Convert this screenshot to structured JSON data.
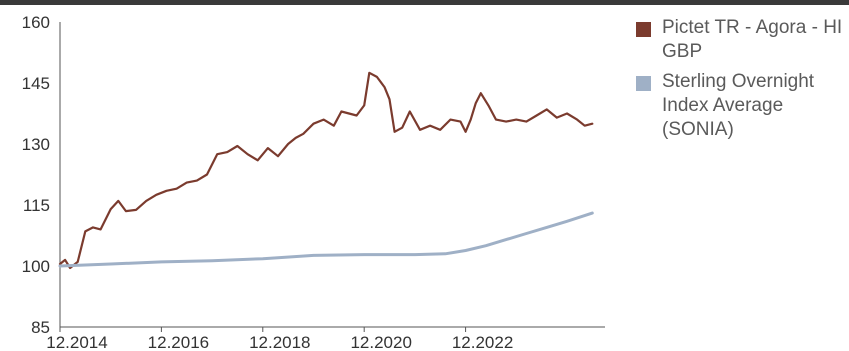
{
  "chart_data": {
    "type": "line",
    "title": "",
    "xlabel": "",
    "ylabel": "",
    "ylim": [
      85,
      160
    ],
    "yticks": [
      "85",
      "100",
      "115",
      "130",
      "145",
      "160"
    ],
    "xlim": [
      2014.0,
      2024.75
    ],
    "xticks": [
      {
        "label": "12.2014",
        "value": 2014.0
      },
      {
        "label": "12.2016",
        "value": 2016.0
      },
      {
        "label": "12.2018",
        "value": 2018.0
      },
      {
        "label": "12.2020",
        "value": 2020.0
      },
      {
        "label": "12.2022",
        "value": 2022.0
      }
    ],
    "grid": false,
    "legend_position": "right",
    "series": [
      {
        "name": "Pictet TR - Agora - HI GBP",
        "color": "#7b3b2e",
        "x": [
          2014.0,
          2014.1,
          2014.2,
          2014.35,
          2014.5,
          2014.65,
          2014.8,
          2015.0,
          2015.15,
          2015.3,
          2015.5,
          2015.7,
          2015.9,
          2016.1,
          2016.3,
          2016.5,
          2016.7,
          2016.9,
          2017.1,
          2017.3,
          2017.5,
          2017.7,
          2017.9,
          2018.1,
          2018.3,
          2018.5,
          2018.65,
          2018.8,
          2019.0,
          2019.2,
          2019.4,
          2019.55,
          2019.7,
          2019.85,
          2020.0,
          2020.1,
          2020.25,
          2020.4,
          2020.5,
          2020.6,
          2020.75,
          2020.9,
          2021.1,
          2021.3,
          2021.5,
          2021.7,
          2021.9,
          2022.0,
          2022.1,
          2022.2,
          2022.3,
          2022.45,
          2022.6,
          2022.8,
          2023.0,
          2023.2,
          2023.4,
          2023.6,
          2023.8,
          2024.0,
          2024.2,
          2024.35,
          2024.5
        ],
        "y": [
          100.5,
          101.5,
          99.5,
          101.0,
          108.5,
          109.5,
          109.0,
          114.0,
          116.0,
          113.5,
          113.8,
          116.0,
          117.5,
          118.5,
          119.0,
          120.5,
          121.0,
          122.5,
          127.5,
          128.0,
          129.5,
          127.5,
          126.0,
          129.0,
          127.0,
          130.0,
          131.5,
          132.5,
          135.0,
          136.0,
          134.5,
          138.0,
          137.5,
          137.0,
          139.5,
          147.5,
          146.5,
          144.0,
          141.0,
          133.0,
          134.0,
          138.0,
          133.5,
          134.5,
          133.5,
          136.0,
          135.5,
          133.0,
          136.0,
          140.0,
          142.5,
          139.5,
          136.0,
          135.5,
          136.0,
          135.5,
          137.0,
          138.5,
          136.5,
          137.5,
          136.0,
          134.5,
          135.0
        ]
      },
      {
        "name": "Sterling Overnight Index Average (SONIA)",
        "color": "#9fb0c6",
        "x": [
          2014.0,
          2015.0,
          2016.0,
          2017.0,
          2018.0,
          2019.0,
          2020.0,
          2021.0,
          2021.6,
          2022.0,
          2022.4,
          2022.8,
          2023.2,
          2023.6,
          2024.0,
          2024.5
        ],
        "y": [
          100.0,
          100.5,
          101.0,
          101.3,
          101.8,
          102.6,
          102.8,
          102.8,
          103.0,
          103.8,
          105.0,
          106.5,
          108.0,
          109.5,
          111.0,
          113.0
        ]
      }
    ]
  }
}
